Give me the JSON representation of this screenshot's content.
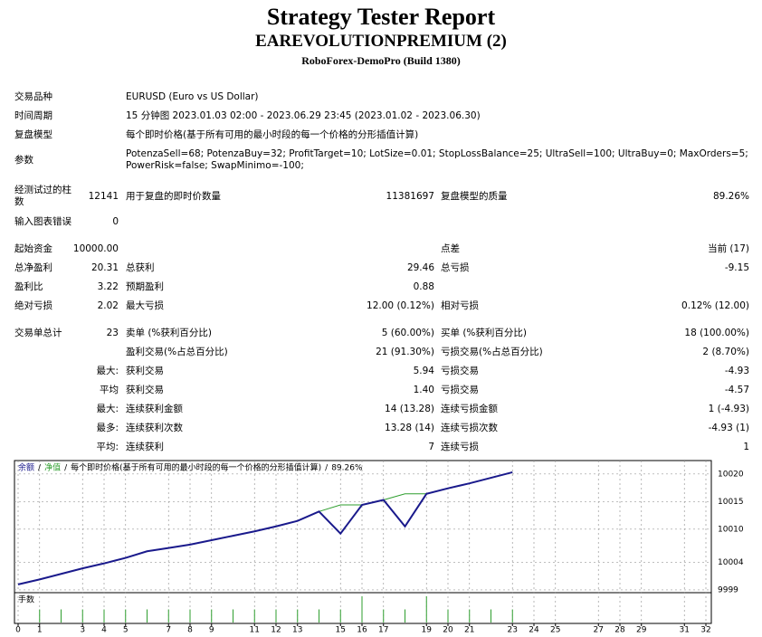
{
  "header": {
    "title": "Strategy Tester Report",
    "subtitle": "EAREVOLUTIONPREMIUM (2)",
    "build": "RoboForex-DemoPro (Build 1380)"
  },
  "info": [
    {
      "label": "交易品种",
      "value": [
        "EURUSD (Euro vs US Dollar)"
      ]
    },
    {
      "label": "时间周期",
      "value": [
        "15 分钟图 2023.01.03 02:00 - 2023.06.29 23:45 (2023.01.02 - 2023.06.30)"
      ]
    },
    {
      "label": "复盘模型",
      "value": [
        "每个即时价格(基于所有可用的最小时段的每一个价格的分形插值计算)"
      ]
    },
    {
      "label": "参数",
      "value": [
        "PotenzaSell=68; PotenzaBuy=32; ProfitTarget=10; LotSize=0.01; StopLossBalance=25; UltraSell=100; UltraBuy=0; MaxOrders=5;",
        "PowerRisk=false; SwapMinimo=-100;"
      ]
    }
  ],
  "stats": [
    {
      "label": "经测试过的柱数",
      "value": "12141",
      "label2": "用于复盘的即时价数量",
      "value2": "11381697",
      "label3": "复盘模型的质量",
      "value3": "89.26%"
    },
    {
      "label": "输入图表错误",
      "value": "0"
    },
    {
      "label": "起始资金",
      "value": "10000.00",
      "label3": "点差",
      "value3": "当前 (17)"
    },
    {
      "label": "总净盈利",
      "value": "20.31",
      "label2": "总获利",
      "value2": "29.46",
      "label3": "总亏损",
      "value3": "-9.15"
    },
    {
      "label": "盈利比",
      "value": "3.22",
      "label2": "预期盈利",
      "value2": "0.88"
    },
    {
      "label": "绝对亏损",
      "value": "2.02",
      "label2": "最大亏损",
      "value2": "12.00 (0.12%)",
      "label3": "相对亏损",
      "value3": "0.12% (12.00)"
    },
    {
      "label": "交易单总计",
      "value": "23",
      "label2": "卖单 (%获利百分比)",
      "value2": "5 (60.00%)",
      "label3": "买单 (%获利百分比)",
      "value3": "18 (100.00%)"
    },
    {
      "label2": "盈利交易(%占总百分比)",
      "value2": "21 (91.30%)",
      "label3": "亏损交易(%占总百分比)",
      "value3": "2 (8.70%)"
    },
    {
      "value": "最大:",
      "label2": "获利交易",
      "value2": "5.94",
      "label3": "亏损交易",
      "value3": "-4.93"
    },
    {
      "value": "平均",
      "label2": "获利交易",
      "value2": "1.40",
      "label3": "亏损交易",
      "value3": "-4.57"
    },
    {
      "value": "最大:",
      "label2": "连续获利金额",
      "value2": "14 (13.28)",
      "label3": "连续亏损金额",
      "value3": "1 (-4.93)"
    },
    {
      "value": "最多:",
      "label2": "连续获利次数",
      "value2": "13.28 (14)",
      "label3": "连续亏损次数",
      "value3": "-4.93 (1)"
    },
    {
      "value": "平均:",
      "label2": "连续获利",
      "value2": "7",
      "label3": "连续亏损",
      "value3": "1"
    }
  ],
  "chart_data": {
    "type": "line",
    "legend_separator": "/",
    "model_label": "每个即时价格(基于所有可用的最小时段的每一个价格的分形插值计算)",
    "quality": "89.26%",
    "x": [
      0,
      1,
      2,
      3,
      4,
      5,
      6,
      7,
      8,
      9,
      10,
      11,
      12,
      13,
      14,
      15,
      16,
      17,
      18,
      19,
      20,
      21,
      22,
      23
    ],
    "series": [
      {
        "name": "余额",
        "color": "#1a1a8c",
        "values": [
          10000,
          10000.9,
          10001.9,
          10002.9,
          10003.8,
          10004.8,
          10006.0,
          10006.6,
          10007.2,
          10008.0,
          10008.8,
          10009.6,
          10010.5,
          10011.5,
          10013.2,
          10009.2,
          10014.4,
          10015.3,
          10010.5,
          10016.4,
          10017.4,
          10018.3,
          10019.3,
          10020.31
        ]
      },
      {
        "name": "净值",
        "color": "#2e9e2e",
        "values": [
          10000,
          10000.9,
          10001.9,
          10002.9,
          10003.8,
          10004.8,
          10006.0,
          10006.6,
          10007.2,
          10008.0,
          10008.8,
          10009.6,
          10010.5,
          10011.5,
          10013.2,
          10014.4,
          10014.4,
          10015.3,
          10016.4,
          10016.4,
          10017.4,
          10018.3,
          10019.3,
          10020.31
        ]
      }
    ],
    "lots": {
      "name": "手数",
      "color": "#2e9e2e",
      "values": [
        null,
        0.01,
        0.01,
        0.01,
        0.01,
        0.01,
        0.01,
        0.01,
        0.01,
        0.01,
        0.01,
        0.01,
        0.01,
        0.01,
        0.01,
        0.01,
        0.02,
        0.01,
        0.01,
        0.02,
        0.01,
        0.01,
        0.01,
        0.01
      ],
      "ylim": [
        0,
        0.02
      ]
    },
    "xlim": [
      0,
      32
    ],
    "xticks": [
      0,
      1,
      3,
      4,
      5,
      7,
      8,
      9,
      11,
      12,
      13,
      15,
      16,
      17,
      19,
      20,
      21,
      23,
      24,
      25,
      27,
      28,
      29,
      31,
      32
    ],
    "ylim": [
      9998.5,
      10022.1
    ],
    "yticks": [
      9999,
      10004,
      10010,
      10015,
      10020
    ],
    "grid": true
  }
}
